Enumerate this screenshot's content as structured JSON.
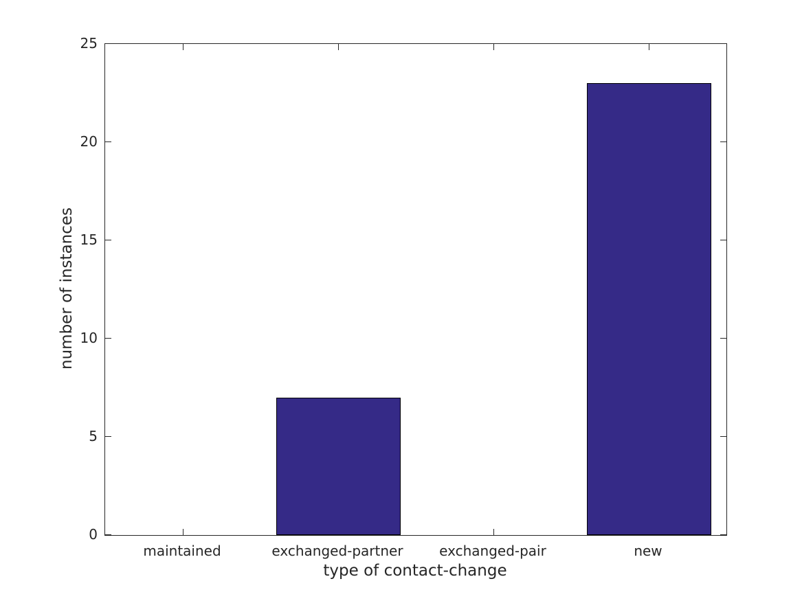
{
  "page": {
    "background": "#ffffff"
  },
  "chart_data": {
    "type": "bar",
    "categories": [
      "maintained",
      "exchanged-partner",
      "exchanged-pair",
      "new"
    ],
    "values": [
      0,
      7,
      0,
      23
    ],
    "title": "",
    "xlabel": "type of contact-change",
    "ylabel": "number of instances",
    "ylim": [
      0,
      25
    ],
    "yticks": [
      0,
      5,
      10,
      15,
      20,
      25
    ],
    "bar_color": "#352a87",
    "bar_edge_color": "#000000",
    "axis_color": "#262626",
    "plot_background": "#ffffff",
    "grid": false,
    "legend": "none",
    "bar_width_fraction": 0.8,
    "tick_direction": "in",
    "box": true
  }
}
